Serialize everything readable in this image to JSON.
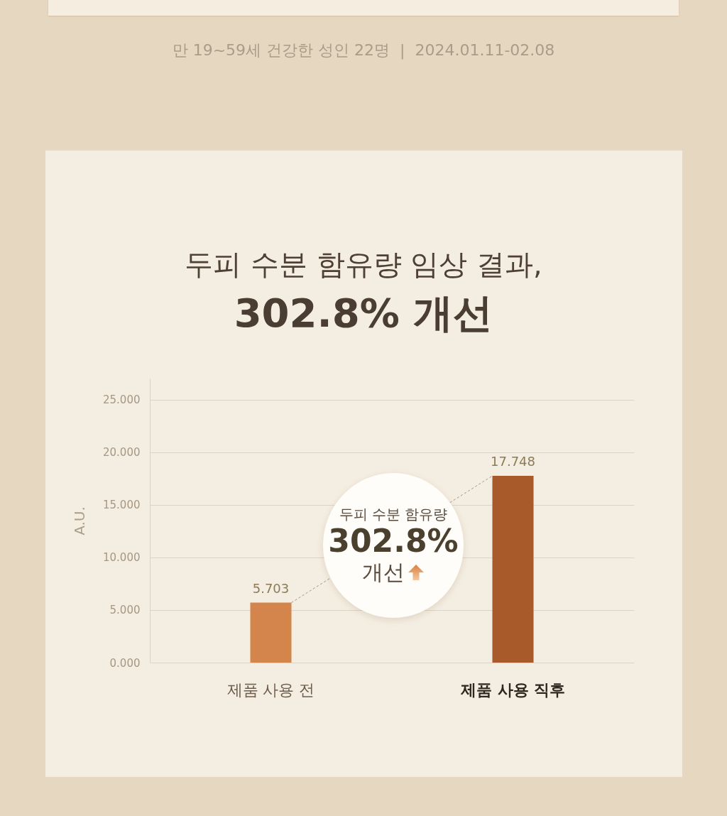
{
  "chart_data": {
    "type": "bar",
    "title": "두피 수분 함유량 임상 결과,",
    "subtitle": "302.8% 개선",
    "ylabel": "A.U.",
    "categories": [
      "제품 사용 전",
      "제품 사용 직후"
    ],
    "values": [
      5.703,
      17.748
    ],
    "colors": [
      "#d4854b",
      "#a85a2b"
    ],
    "ylim": [
      0,
      27
    ],
    "yticks": [
      {
        "value": 0,
        "label": "0.000"
      },
      {
        "value": 5,
        "label": "5.000"
      },
      {
        "value": 10,
        "label": "10.000"
      },
      {
        "value": 15,
        "label": "15.000"
      },
      {
        "value": 20,
        "label": "20.000"
      },
      {
        "value": 25,
        "label": "25.000"
      }
    ],
    "grid": "y",
    "data_labels": true,
    "annotations": [
      "만 19~59세 건강한 성인 22명  |  2024.01.11-02.08",
      "두피 수분 함유량",
      "302.8%",
      "개선"
    ]
  }
}
